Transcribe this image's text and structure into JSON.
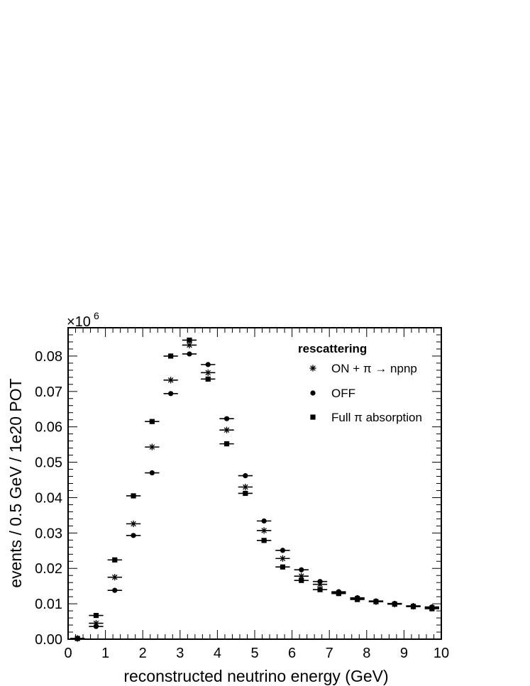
{
  "chart_data": {
    "type": "scatter",
    "xlabel": "reconstructed neutrino energy (GeV)",
    "ylabel": "events / 0.5 GeV / 1e20 POT",
    "axis_multiplier": "×10",
    "axis_multiplier_exponent": "6",
    "xlim": [
      0,
      10
    ],
    "ylim": [
      0,
      0.088
    ],
    "bin_width": 0.5,
    "x_ticks": [
      "0",
      "1",
      "2",
      "3",
      "4",
      "5",
      "6",
      "7",
      "8",
      "9",
      "10"
    ],
    "y_ticks": [
      "0.00",
      "0.01",
      "0.02",
      "0.03",
      "0.04",
      "0.05",
      "0.06",
      "0.07",
      "0.08"
    ],
    "legend_title": "rescattering",
    "legend_position": "top-right",
    "x": [
      0.25,
      0.75,
      1.25,
      1.75,
      2.25,
      2.75,
      3.25,
      3.75,
      4.25,
      4.75,
      5.25,
      5.75,
      6.25,
      6.75,
      7.25,
      7.75,
      8.25,
      8.75,
      9.25,
      9.75
    ],
    "series": [
      {
        "name": "ON + π → npnp",
        "marker": "star",
        "values": [
          0.0002,
          0.0045,
          0.0175,
          0.0326,
          0.0543,
          0.0732,
          0.0831,
          0.0753,
          0.0591,
          0.043,
          0.0307,
          0.0228,
          0.0178,
          0.0155,
          0.0131,
          0.0115,
          0.0106,
          0.0099,
          0.0093,
          0.0089
        ]
      },
      {
        "name": "OFF",
        "marker": "circle",
        "values": [
          0.0002,
          0.0036,
          0.0138,
          0.0293,
          0.047,
          0.0694,
          0.0806,
          0.0776,
          0.0623,
          0.0462,
          0.0334,
          0.0251,
          0.0196,
          0.0163,
          0.0134,
          0.0117,
          0.0108,
          0.0101,
          0.0094,
          0.0091
        ]
      },
      {
        "name": "Full π absorption",
        "marker": "square",
        "values": [
          0.0002,
          0.0067,
          0.0224,
          0.0405,
          0.0615,
          0.08,
          0.0845,
          0.0735,
          0.0552,
          0.0412,
          0.0279,
          0.0204,
          0.0166,
          0.014,
          0.0129,
          0.0112,
          0.0106,
          0.0099,
          0.0092,
          0.0086
        ]
      }
    ]
  }
}
